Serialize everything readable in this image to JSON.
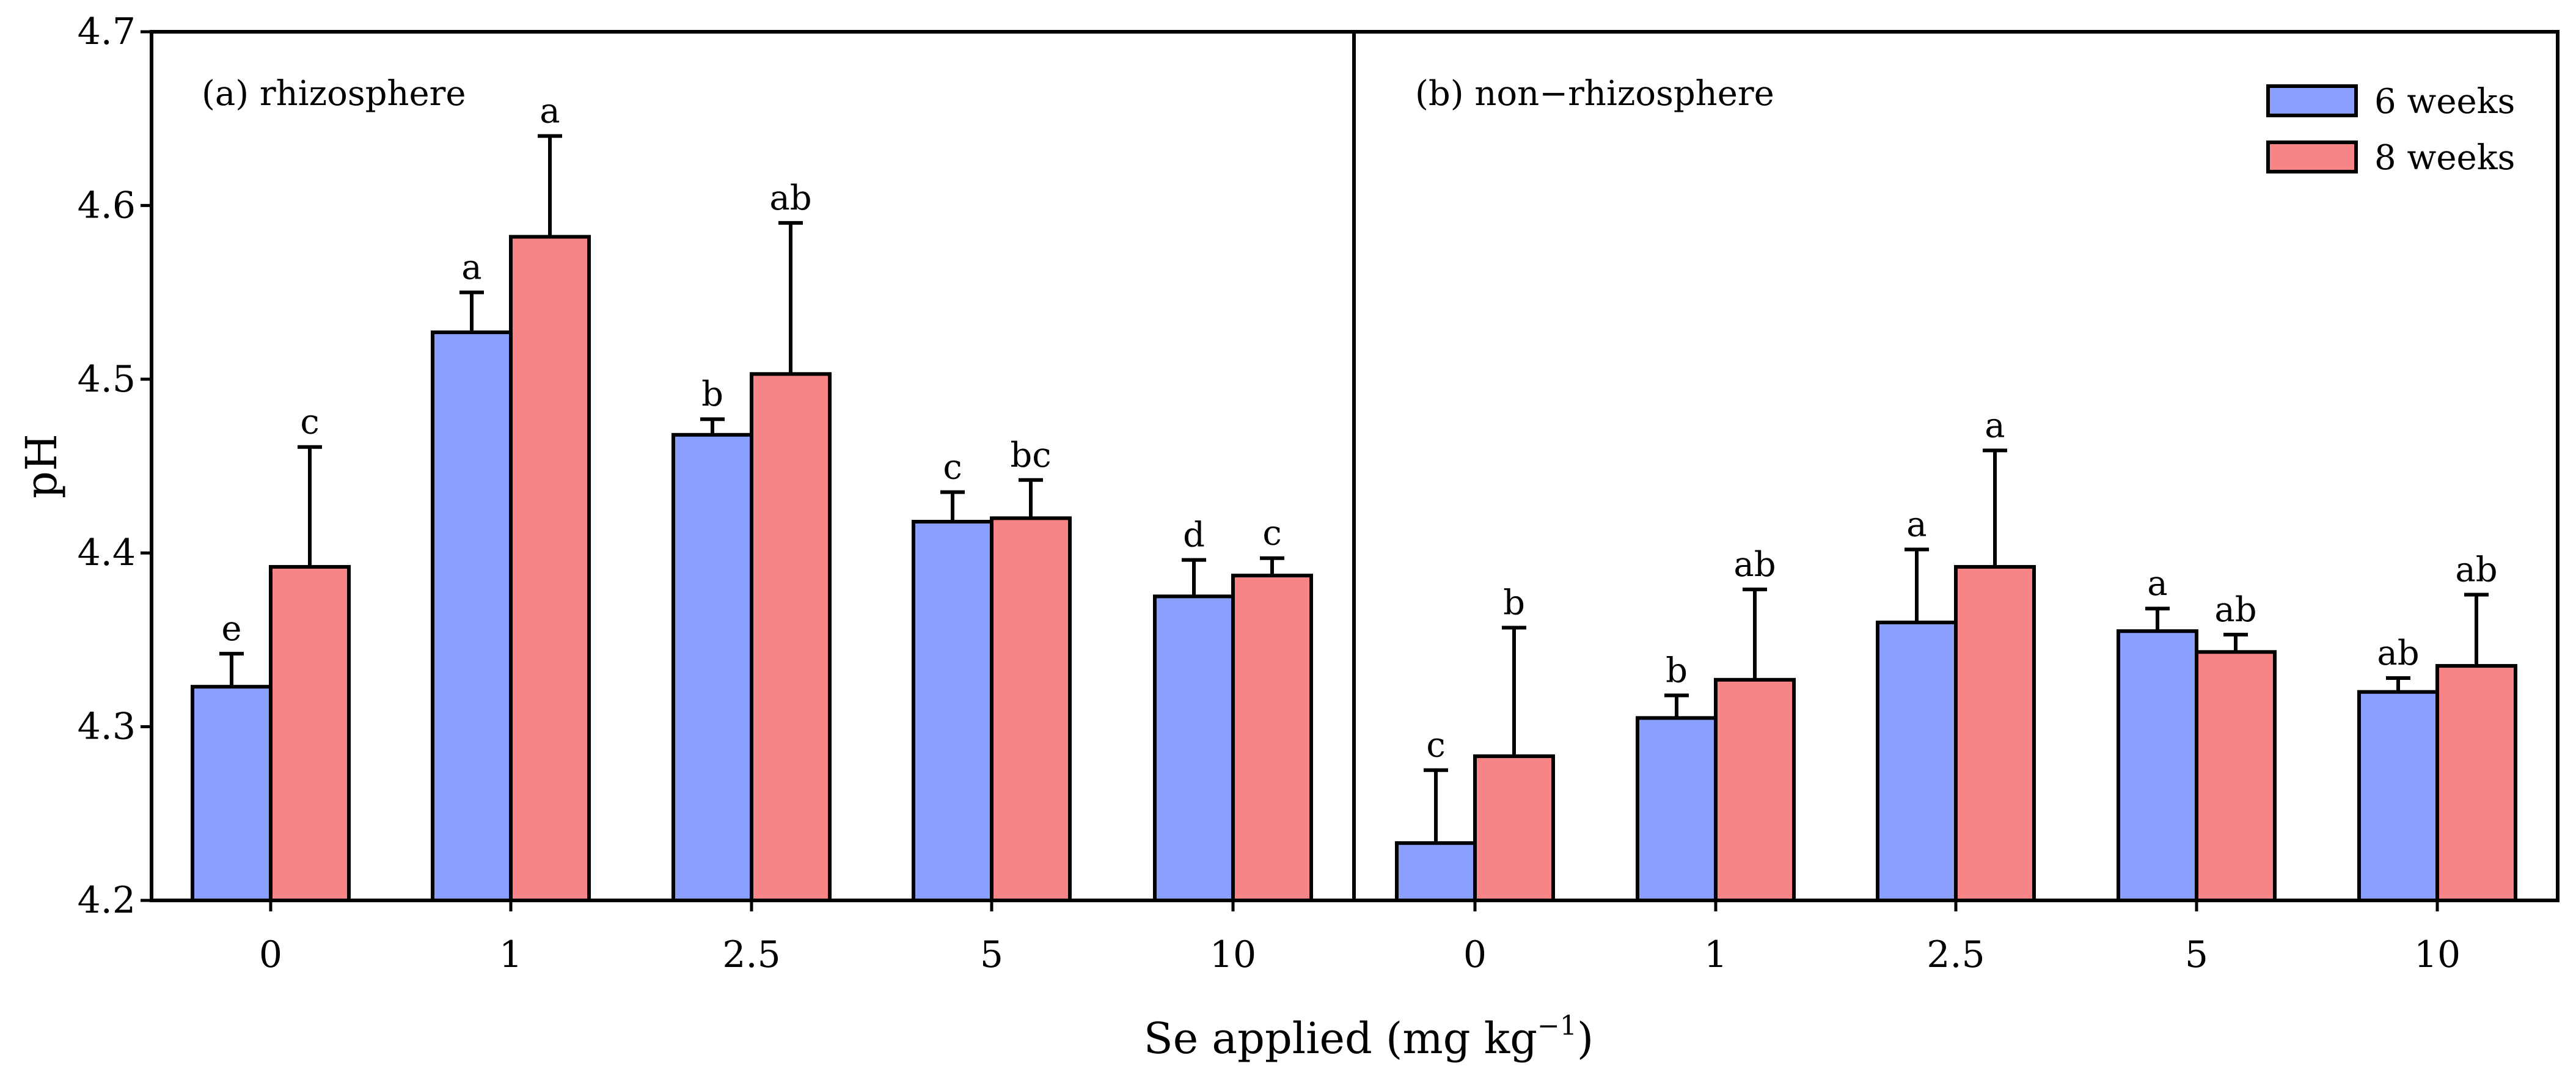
{
  "chart_data": {
    "type": "bar",
    "ylabel": "pH",
    "xlabel": "Se applied (mg kg",
    "xlabel_superscript": "−1",
    "xlabel_close": ")",
    "ylim": [
      4.2,
      4.7
    ],
    "yticks": [
      "4.2",
      "4.3",
      "4.4",
      "4.5",
      "4.6",
      "4.7"
    ],
    "colors": {
      "6 weeks": "#8aa0ff",
      "8 weeks": "#f78585"
    },
    "legend": {
      "position": "top-right",
      "entries": [
        "6 weeks",
        "8 weeks"
      ]
    },
    "panels": [
      {
        "label": "(a) rhizosphere",
        "categories": [
          "0",
          "1",
          "2.5",
          "5",
          "10"
        ],
        "series": [
          {
            "name": "6 weeks",
            "values": [
              4.323,
              4.527,
              4.468,
              4.418,
              4.375
            ],
            "errors": [
              0.019,
              0.023,
              0.009,
              0.017,
              0.021
            ],
            "letters": [
              "e",
              "a",
              "b",
              "c",
              "d"
            ]
          },
          {
            "name": "8 weeks",
            "values": [
              4.392,
              4.582,
              4.503,
              4.42,
              4.387
            ],
            "errors": [
              0.069,
              0.058,
              0.087,
              0.022,
              0.01
            ],
            "letters": [
              "c",
              "a",
              "ab",
              "bc",
              "c"
            ]
          }
        ]
      },
      {
        "label": "(b) non−rhizosphere",
        "categories": [
          "0",
          "1",
          "2.5",
          "5",
          "10"
        ],
        "series": [
          {
            "name": "6 weeks",
            "values": [
              4.233,
              4.305,
              4.36,
              4.355,
              4.32
            ],
            "errors": [
              0.042,
              0.013,
              0.042,
              0.013,
              0.008
            ],
            "letters": [
              "c",
              "b",
              "a",
              "a",
              "ab"
            ]
          },
          {
            "name": "8 weeks",
            "values": [
              4.283,
              4.327,
              4.392,
              4.343,
              4.335
            ],
            "errors": [
              0.074,
              0.052,
              0.067,
              0.01,
              0.041
            ],
            "letters": [
              "b",
              "ab",
              "a",
              "ab",
              "ab"
            ]
          }
        ]
      }
    ]
  }
}
